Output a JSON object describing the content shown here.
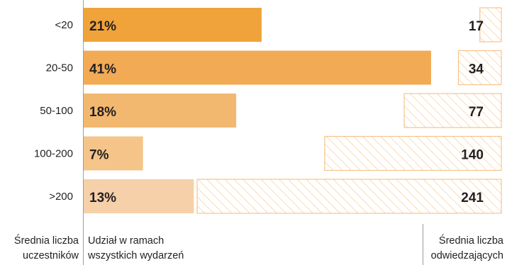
{
  "chart_data": {
    "type": "bar",
    "categories": [
      "<20",
      "20-50",
      "50-100",
      "100-200",
      ">200"
    ],
    "series": [
      {
        "values": [
          21,
          41,
          18,
          7,
          13
        ],
        "unit": "%"
      },
      {
        "values": [
          17,
          34,
          77,
          140,
          241
        ]
      }
    ],
    "percent_labels": [
      "21%",
      "41%",
      "18%",
      "7%",
      "13%"
    ],
    "colors": {
      "share_bars": [
        "#f0a33a",
        "#f2aa55",
        "#f3b870",
        "#f5c489",
        "#f5d0a9"
      ],
      "visitors_hatch": "#f5c48a",
      "divider": "#9d9d9d"
    },
    "footer": {
      "left_line1": "Średnia liczba",
      "left_line2": "uczestników",
      "middle_line1": "Udział w ramach",
      "middle_line2": "wszystkich wydarzeń",
      "right_line1": "Średnia liczba",
      "right_line2": "odwiedzających"
    }
  }
}
